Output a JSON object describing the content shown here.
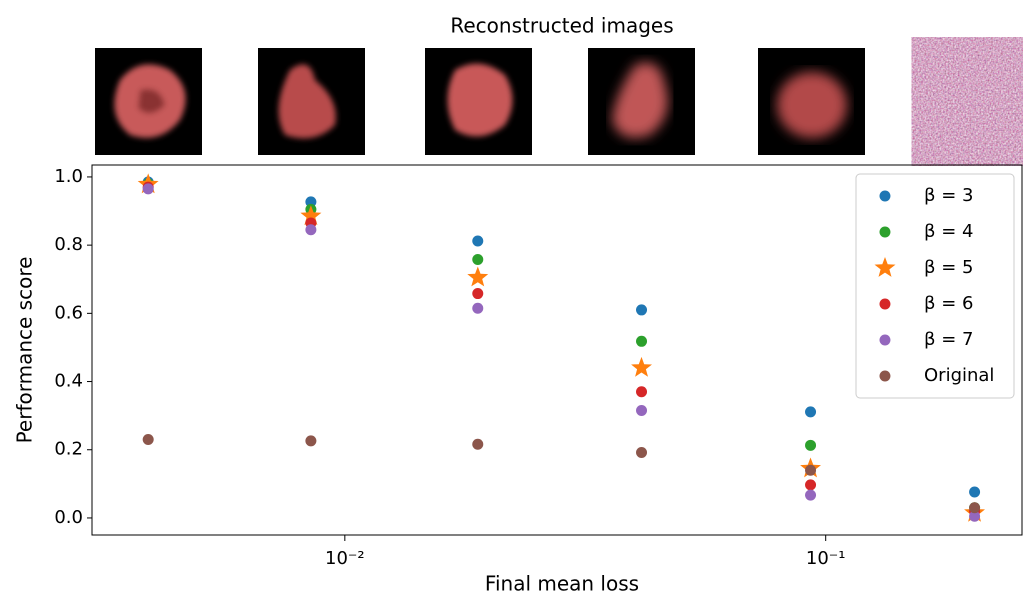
{
  "chart_data": {
    "type": "scatter",
    "title": "Reconstructed images",
    "x_label": "Final mean loss",
    "y_label": "Performance score",
    "x": [
      0.0039,
      0.0085,
      0.0189,
      0.0414,
      0.093,
      0.204
    ],
    "xscale": "log",
    "xlim": [
      0.00298,
      0.256
    ],
    "ylim": [
      -0.05,
      1.035
    ],
    "xticks": [
      {
        "value": 0.01,
        "label": "10⁻²"
      },
      {
        "value": 0.1,
        "label": "10⁻¹"
      }
    ],
    "yticks": [
      {
        "value": 0,
        "label": "0.0"
      },
      0.2,
      0.4,
      0.6,
      0.8,
      {
        "value": 1,
        "label": "1.0"
      }
    ],
    "grid": false,
    "legend": "upper right",
    "series": [
      {
        "name": "β = 3",
        "color": "#1f77b4",
        "marker": "circle",
        "values": [
          0.985,
          0.927,
          0.812,
          0.61,
          0.311,
          0.076
        ]
      },
      {
        "name": "β = 4",
        "color": "#2ca02c",
        "marker": "circle",
        "values": [
          0.98,
          0.905,
          0.758,
          0.518,
          0.213,
          0.03
        ]
      },
      {
        "name": "β = 5",
        "color": "#ff7f0e",
        "marker": "star",
        "values": [
          0.978,
          0.885,
          0.705,
          0.44,
          0.145,
          0.015
        ]
      },
      {
        "name": "β = 6",
        "color": "#d62728",
        "marker": "circle",
        "values": [
          0.97,
          0.865,
          0.658,
          0.37,
          0.097,
          0.02
        ]
      },
      {
        "name": "β = 7",
        "color": "#9467bd",
        "marker": "circle",
        "values": [
          0.965,
          0.845,
          0.615,
          0.315,
          0.067,
          0.005
        ]
      },
      {
        "name": "Original",
        "color": "#8c564b",
        "marker": "circle",
        "values": [
          0.23,
          0.226,
          0.216,
          0.192,
          0.14,
          0.03
        ]
      }
    ]
  }
}
